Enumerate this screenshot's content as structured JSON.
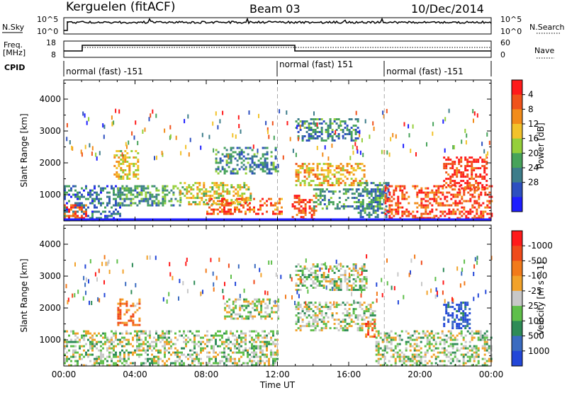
{
  "header": {
    "station": "Kerguelen (fitACF)",
    "beam": "Beam 03",
    "date": "10/Dec/2014"
  },
  "top_panels": {
    "nsky_label": "N.Sky",
    "nsky_ticks": [
      "10^5",
      "10^0"
    ],
    "nsearch_ticks": [
      "10^5",
      "10^0"
    ],
    "nsearch_label": "N.Search",
    "freq_label_1": "Freq.",
    "freq_label_2": "[MHz]",
    "freq_ticks": [
      "18",
      "8"
    ],
    "nave_ticks": [
      "60",
      "0"
    ],
    "nave_label": "Nave",
    "cpid_label": "CPID",
    "cpid_segments": [
      {
        "label": "normal (fast) -151",
        "start_h": 0,
        "end_h": 12
      },
      {
        "label": "normal (fast) 151",
        "start_h": 12,
        "end_h": 18
      },
      {
        "label": "normal (fast) -151",
        "start_h": 18,
        "end_h": 24
      }
    ]
  },
  "chart_data": [
    {
      "type": "heatmap",
      "name": "power",
      "ylabel": "Slant Range [km]",
      "ylim": [
        180,
        4600
      ],
      "yticks": [
        1000,
        2000,
        3000,
        4000
      ],
      "xlim": [
        0,
        24
      ],
      "xticks": [
        "00:00",
        "04:00",
        "08:00",
        "12:00",
        "16:00",
        "20:00",
        "00:00"
      ],
      "colorbar_label": "Power [dB]",
      "colorbar_ticks": [
        "4",
        "8",
        "12",
        "16",
        "20",
        "24",
        "28"
      ],
      "colorbar_colors": [
        "#1e1eff",
        "#2d4fc0",
        "#3d7d8a",
        "#47a35a",
        "#95cf3a",
        "#f2c22a",
        "#f28c1a",
        "#f0521a",
        "#ff1a1a"
      ],
      "echo_regions": [
        {
          "t0": 0.0,
          "t1": 3.2,
          "r0": 200,
          "r1": 1300,
          "level": 0.25
        },
        {
          "t0": 0.0,
          "t1": 1.2,
          "r0": 250,
          "r1": 700,
          "level": 0.85
        },
        {
          "t0": 2.8,
          "t1": 4.2,
          "r0": 1500,
          "r1": 2400,
          "level": 0.6
        },
        {
          "t0": 3.0,
          "t1": 6.5,
          "r0": 700,
          "r1": 1300,
          "level": 0.35
        },
        {
          "t0": 6.5,
          "t1": 10.5,
          "r0": 700,
          "r1": 1400,
          "level": 0.55
        },
        {
          "t0": 8.0,
          "t1": 12.2,
          "r0": 400,
          "r1": 900,
          "level": 0.8
        },
        {
          "t0": 8.5,
          "t1": 12.0,
          "r0": 1700,
          "r1": 2500,
          "level": 0.3
        },
        {
          "t0": 12.8,
          "t1": 14.2,
          "r0": 250,
          "r1": 1000,
          "level": 0.85
        },
        {
          "t0": 13.0,
          "t1": 17.0,
          "r0": 1300,
          "r1": 2000,
          "level": 0.65
        },
        {
          "t0": 13.0,
          "t1": 16.5,
          "r0": 2700,
          "r1": 3400,
          "level": 0.3
        },
        {
          "t0": 14.0,
          "t1": 18.0,
          "r0": 600,
          "r1": 1200,
          "level": 0.35
        },
        {
          "t0": 16.5,
          "t1": 18.2,
          "r0": 300,
          "r1": 1400,
          "level": 0.3
        },
        {
          "t0": 18.0,
          "t1": 24.0,
          "r0": 250,
          "r1": 1300,
          "level": 0.85
        },
        {
          "t0": 21.3,
          "t1": 23.8,
          "r0": 1200,
          "r1": 2200,
          "level": 0.9
        }
      ]
    },
    {
      "type": "heatmap",
      "name": "velocity",
      "ylabel": "Slant Range [km]",
      "ylim": [
        180,
        4600
      ],
      "yticks": [
        1000,
        2000,
        3000,
        4000
      ],
      "xlim": [
        0,
        24
      ],
      "xticks": [
        "00:00",
        "04:00",
        "08:00",
        "12:00",
        "16:00",
        "20:00",
        "00:00"
      ],
      "xlabel": "Time UT",
      "colorbar_label": "Velocity [m s^-1]",
      "colorbar_ticks": [
        "1000",
        "500",
        "100",
        "25",
        "-25",
        "-100",
        "-500",
        "-1000"
      ],
      "colorbar_colors": [
        "#2347d8",
        "#3a6bc0",
        "#2e8b57",
        "#5fbf4a",
        "#c8c8c8",
        "#f2a22a",
        "#f27a1a",
        "#f04a1a",
        "#ff1a1a"
      ],
      "echo_regions": [
        {
          "t0": 0.0,
          "t1": 12.0,
          "r0": 200,
          "r1": 1300,
          "level": 0.45
        },
        {
          "t0": 3.0,
          "t1": 4.2,
          "r0": 1500,
          "r1": 2300,
          "level": 0.7
        },
        {
          "t0": 9.0,
          "t1": 12.0,
          "r0": 1700,
          "r1": 2300,
          "level": 0.45
        },
        {
          "t0": 13.0,
          "t1": 17.5,
          "r0": 1300,
          "r1": 2200,
          "level": 0.45
        },
        {
          "t0": 13.0,
          "t1": 17.0,
          "r0": 2600,
          "r1": 3400,
          "level": 0.45
        },
        {
          "t0": 16.8,
          "t1": 17.5,
          "r0": 1100,
          "r1": 1600,
          "level": 0.75
        },
        {
          "t0": 17.5,
          "t1": 24.0,
          "r0": 200,
          "r1": 1300,
          "level": 0.45
        },
        {
          "t0": 21.3,
          "t1": 22.8,
          "r0": 1400,
          "r1": 2200,
          "level": 0.1
        }
      ]
    }
  ]
}
